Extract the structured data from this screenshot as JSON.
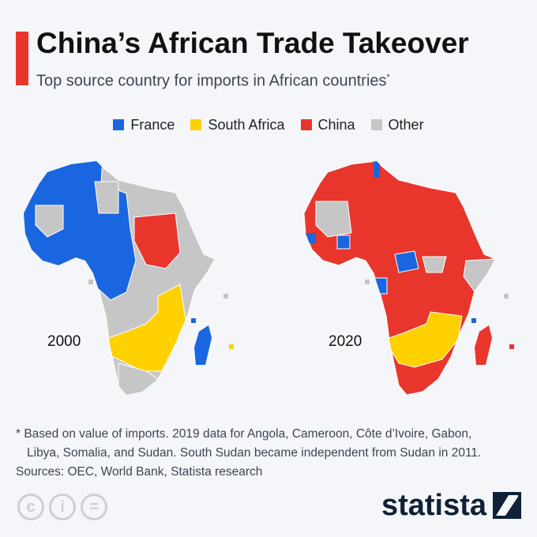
{
  "header": {
    "title": "China’s African Trade Takeover",
    "subtitle": "Top source country for imports in African countries",
    "subtitle_mark": "*"
  },
  "legend": [
    {
      "label": "France",
      "color": "#1a66e0"
    },
    {
      "label": "South Africa",
      "color": "#ffd100"
    },
    {
      "label": "China",
      "color": "#e8362d"
    },
    {
      "label": "Other",
      "color": "#c6c6c6"
    }
  ],
  "maps": [
    {
      "year": "2000"
    },
    {
      "year": "2020"
    }
  ],
  "footer": {
    "note_line1": "* Based on value of imports. 2019 data for Angola, Cameroon, Côte d’Ivoire, Gabon,",
    "note_line2": "Libya, Somalia, and Sudan. South Sudan became independent from Sudan in 2011.",
    "sources": "Sources: OEC, World Bank, Statista research",
    "logo": "statista"
  }
}
